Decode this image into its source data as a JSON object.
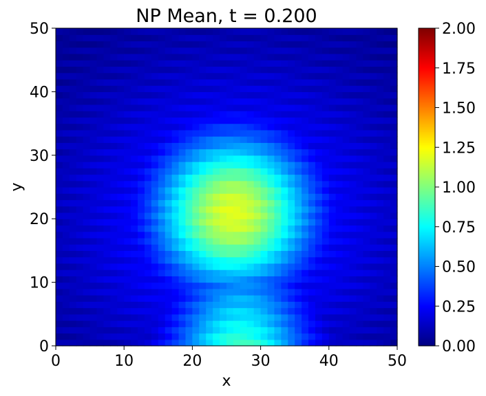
{
  "chart_data": {
    "type": "heatmap",
    "title": "NP Mean, t = 0.200",
    "xlabel": "x",
    "ylabel": "y",
    "xlim": [
      0,
      50
    ],
    "ylim": [
      0,
      50
    ],
    "grid_size": [
      50,
      50
    ],
    "x_ticks": [
      "0",
      "10",
      "20",
      "30",
      "40",
      "50"
    ],
    "y_ticks": [
      "0",
      "10",
      "20",
      "30",
      "40",
      "50"
    ],
    "colormap": "jet",
    "colorbar": {
      "vmin": 0.0,
      "vmax": 2.0,
      "ticks": [
        "0.00",
        "0.25",
        "0.50",
        "0.75",
        "1.00",
        "1.25",
        "1.50",
        "1.75",
        "2.00"
      ]
    },
    "field_description": "Smooth plume: max ~1.15 near (26, 21); ~0.85-0.9 along bottom between x=15 and x=38; ~0.05 at top edge; dark corner cell near (49, 0.5)",
    "profiles": {
      "vertical_at_x_26": [
        {
          "y": 0,
          "v": 0.85
        },
        {
          "y": 10,
          "v": 1.0
        },
        {
          "y": 20,
          "v": 1.15
        },
        {
          "y": 30,
          "v": 0.85
        },
        {
          "y": 35,
          "v": 0.45
        },
        {
          "y": 40,
          "v": 0.2
        },
        {
          "y": 50,
          "v": 0.05
        }
      ],
      "horizontal_at_y_20": [
        {
          "x": 0,
          "v": 0.15
        },
        {
          "x": 10,
          "v": 0.45
        },
        {
          "x": 15,
          "v": 0.8
        },
        {
          "x": 26,
          "v": 1.15
        },
        {
          "x": 35,
          "v": 0.85
        },
        {
          "x": 42,
          "v": 0.5
        },
        {
          "x": 50,
          "v": 0.3
        }
      ]
    }
  }
}
